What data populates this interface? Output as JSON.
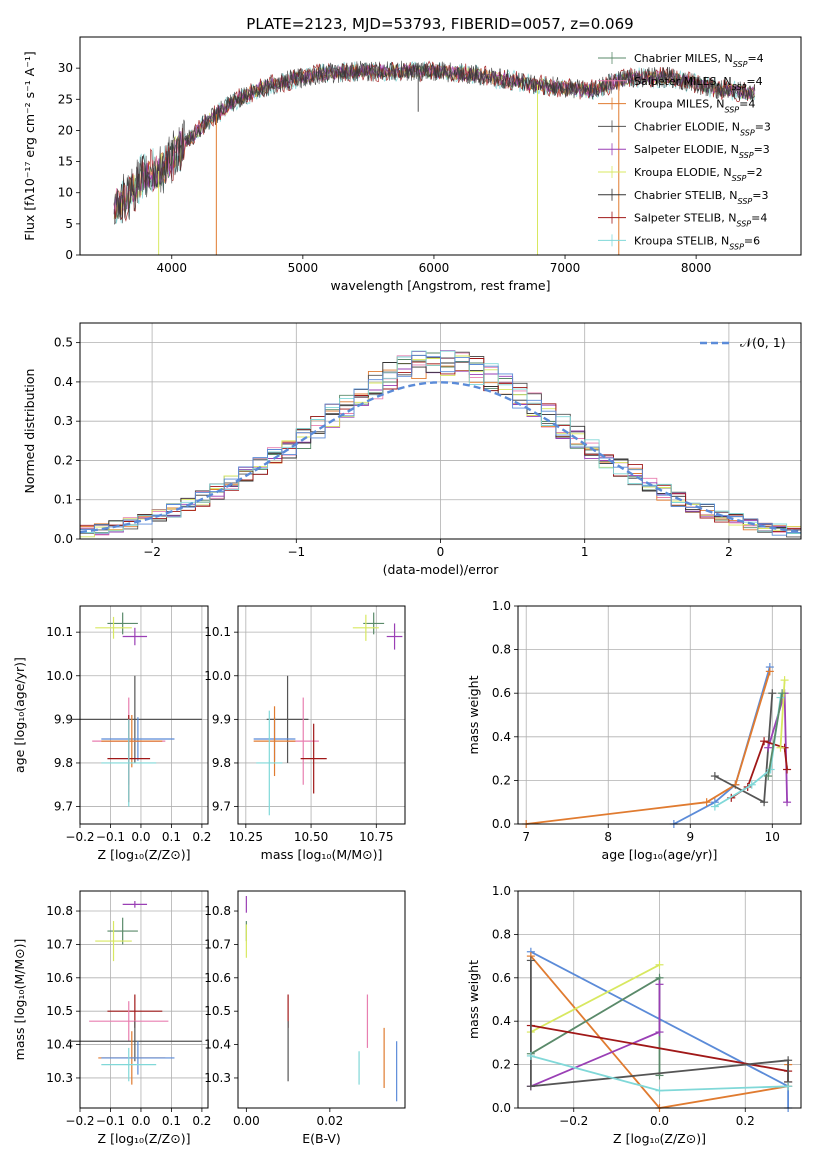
{
  "figure_title": "PLATE=2123, MJD=53793, FIBERID=0057, z=0.069",
  "colors": {
    "chabrier_miles": "#5a8a6a",
    "salpeter_miles": "#e87fb0",
    "kroupa_miles": "#e07b30",
    "chabrier_elodie": "#555555",
    "salpeter_elodie": "#9a3fb5",
    "kroupa_elodie": "#d8e860",
    "chabrier_stelib": "#333333",
    "salpeter_stelib": "#a01818",
    "kroupa_stelib": "#80d8d8",
    "normal_curve": "#5b8bd8",
    "extra_blue": "#5b8bd8"
  },
  "chart_data": [
    {
      "id": "spectrum",
      "type": "line",
      "title": "PLATE=2123, MJD=53793, FIBERID=0057, z=0.069",
      "xlabel": "wavelength [Angstrom, rest frame]",
      "ylabel": "Flux [fλ10⁻¹⁷ erg cm⁻² s⁻¹ A⁻¹]",
      "xlim": [
        3300,
        8800
      ],
      "ylim": [
        0,
        35
      ],
      "xticks": [
        4000,
        5000,
        6000,
        7000,
        8000
      ],
      "yticks": [
        0,
        5,
        10,
        15,
        20,
        25,
        30
      ],
      "grid": false,
      "legend_position": "top-right",
      "legend": [
        {
          "model": "Chabrier MILES",
          "n": "4",
          "color": "#5a8a6a"
        },
        {
          "model": "Salpeter MILES",
          "n": "4",
          "color": "#e87fb0"
        },
        {
          "model": "Kroupa MILES",
          "n": "4",
          "color": "#e07b30"
        },
        {
          "model": "Chabrier ELODIE",
          "n": "3",
          "color": "#555555"
        },
        {
          "model": "Salpeter ELODIE",
          "n": "3",
          "color": "#9a3fb5"
        },
        {
          "model": "Kroupa ELODIE",
          "n": "2",
          "color": "#d8e860"
        },
        {
          "model": "Chabrier STELIB",
          "n": "3",
          "color": "#333333"
        },
        {
          "model": "Salpeter STELIB",
          "n": "4",
          "color": "#a01818"
        },
        {
          "model": "Kroupa STELIB",
          "n": "6",
          "color": "#80d8d8"
        }
      ],
      "continuum": [
        [
          3550,
          8
        ],
        [
          3650,
          9
        ],
        [
          3750,
          12
        ],
        [
          3850,
          13
        ],
        [
          3950,
          14
        ],
        [
          4050,
          17
        ],
        [
          4150,
          19
        ],
        [
          4300,
          22
        ],
        [
          4500,
          25
        ],
        [
          4700,
          27
        ],
        [
          4900,
          28
        ],
        [
          5100,
          29
        ],
        [
          5400,
          29.5
        ],
        [
          5700,
          29.5
        ],
        [
          6000,
          29.5
        ],
        [
          6300,
          29
        ],
        [
          6600,
          28
        ],
        [
          6900,
          27
        ],
        [
          7200,
          26.5
        ],
        [
          7500,
          28.5
        ],
        [
          7800,
          28.5
        ],
        [
          8200,
          26.5
        ],
        [
          8450,
          26
        ]
      ],
      "spikes": [
        {
          "x": 4340,
          "y": 0
        },
        {
          "x": 3900,
          "y": 0
        },
        {
          "x": 5880,
          "y": 23
        },
        {
          "x": 6790,
          "y": 0
        },
        {
          "x": 7410,
          "y": 0
        }
      ]
    },
    {
      "id": "residuals",
      "type": "bar",
      "xlabel": "(data-model)/error",
      "ylabel": "Normed distribution",
      "xlim": [
        -2.5,
        2.5
      ],
      "ylim": [
        0,
        0.55
      ],
      "xticks": [
        -2,
        -1,
        0,
        1,
        2
      ],
      "yticks": [
        0.0,
        0.1,
        0.2,
        0.3,
        0.4,
        0.5
      ],
      "grid": true,
      "legend_position": "top-right",
      "curve_label": "𝒩(0, 1)",
      "bin_width": 0.1
    },
    {
      "id": "age_vs_z",
      "type": "scatter",
      "xlabel": "Z [log₁₀(Z/Z⊙)]",
      "ylabel": "age  [log₁₀(age/yr)]",
      "xlim": [
        -0.2,
        0.22
      ],
      "ylim": [
        9.66,
        10.16
      ],
      "xticks": [
        -0.2,
        -0.1,
        0.0,
        0.1,
        0.2
      ],
      "yticks": [
        9.7,
        9.8,
        9.9,
        10.0,
        10.1
      ],
      "grid": true,
      "points": [
        {
          "x": -0.06,
          "y": 10.12,
          "xerr": 0.05,
          "yerr": 0.025,
          "color": "#5a8a6a"
        },
        {
          "x": -0.09,
          "y": 10.11,
          "xerr": 0.06,
          "yerr": 0.025,
          "color": "#d8e860"
        },
        {
          "x": -0.02,
          "y": 10.09,
          "xerr": 0.04,
          "yerr": 0.02,
          "color": "#9a3fb5"
        },
        {
          "x": -0.02,
          "y": 9.9,
          "xerr": 0.22,
          "yerr": 0.1,
          "color": "#555555"
        },
        {
          "x": -0.04,
          "y": 9.85,
          "xerr": 0.12,
          "yerr": 0.1,
          "color": "#e87fb0"
        },
        {
          "x": -0.01,
          "y": 9.855,
          "xerr": 0.12,
          "yerr": 0.05,
          "color": "#5b8bd8"
        },
        {
          "x": -0.03,
          "y": 9.85,
          "xerr": 0.1,
          "yerr": 0.06,
          "color": "#e07b30"
        },
        {
          "x": -0.04,
          "y": 9.81,
          "xerr": 0.07,
          "yerr": 0.1,
          "color": "#a01818"
        },
        {
          "x": -0.04,
          "y": 9.8,
          "xerr": 0.09,
          "yerr": 0.1,
          "color": "#80d8d8"
        }
      ]
    },
    {
      "id": "age_vs_mass",
      "type": "scatter",
      "xlabel": "mass [log₁₀(M/M⊙)]",
      "ylabel": "",
      "xlim": [
        10.22,
        10.86
      ],
      "ylim": [
        9.66,
        10.16
      ],
      "xticks": [
        10.25,
        10.5,
        10.75
      ],
      "yticks": [
        9.7,
        9.8,
        9.9,
        10.0,
        10.1
      ],
      "grid": true,
      "points": [
        {
          "x": 10.74,
          "y": 10.12,
          "xerr": 0.04,
          "yerr": 0.025,
          "color": "#5a8a6a"
        },
        {
          "x": 10.71,
          "y": 10.11,
          "xerr": 0.05,
          "yerr": 0.03,
          "color": "#d8e860"
        },
        {
          "x": 10.82,
          "y": 10.09,
          "xerr": 0.03,
          "yerr": 0.03,
          "color": "#9a3fb5"
        },
        {
          "x": 10.41,
          "y": 9.9,
          "xerr": 0.08,
          "yerr": 0.1,
          "color": "#555555"
        },
        {
          "x": 10.47,
          "y": 9.85,
          "xerr": 0.06,
          "yerr": 0.1,
          "color": "#e87fb0"
        },
        {
          "x": 10.36,
          "y": 9.855,
          "xerr": 0.08,
          "yerr": 0.05,
          "color": "#5b8bd8"
        },
        {
          "x": 10.36,
          "y": 9.85,
          "xerr": 0.08,
          "yerr": 0.08,
          "color": "#e07b30"
        },
        {
          "x": 10.51,
          "y": 9.81,
          "xerr": 0.05,
          "yerr": 0.08,
          "color": "#a01818"
        },
        {
          "x": 10.34,
          "y": 9.8,
          "xerr": 0.05,
          "yerr": 0.12,
          "color": "#80d8d8"
        }
      ]
    },
    {
      "id": "mass_weight_vs_age",
      "type": "line",
      "xlabel": "age  [log₁₀(age/yr)]",
      "ylabel": "mass weight",
      "xlim": [
        6.9,
        10.35
      ],
      "ylim": [
        0,
        1.0
      ],
      "xticks": [
        7,
        8,
        9,
        10
      ],
      "yticks": [
        0.0,
        0.2,
        0.4,
        0.6,
        0.8,
        1.0
      ],
      "grid": true,
      "series": [
        {
          "color": "#5b8bd8",
          "points": [
            [
              8.8,
              0.0
            ],
            [
              9.3,
              0.1
            ],
            [
              9.55,
              0.18
            ],
            [
              9.97,
              0.72
            ]
          ]
        },
        {
          "color": "#e07b30",
          "points": [
            [
              7.0,
              0.0
            ],
            [
              9.2,
              0.1
            ],
            [
              9.55,
              0.18
            ],
            [
              9.97,
              0.7
            ]
          ]
        },
        {
          "color": "#555555",
          "points": [
            [
              9.3,
              0.22
            ],
            [
              9.9,
              0.1
            ],
            [
              10.0,
              0.6
            ]
          ]
        },
        {
          "color": "#9a3fb5",
          "points": [
            [
              9.95,
              0.35
            ],
            [
              10.15,
              0.6
            ],
            [
              10.18,
              0.1
            ]
          ]
        },
        {
          "color": "#a01818",
          "points": [
            [
              9.5,
              0.12
            ],
            [
              9.7,
              0.17
            ],
            [
              9.9,
              0.38
            ],
            [
              10.15,
              0.35
            ],
            [
              10.18,
              0.25
            ]
          ]
        },
        {
          "color": "#d8e860",
          "points": [
            [
              10.1,
              0.35
            ],
            [
              10.15,
              0.66
            ]
          ]
        },
        {
          "color": "#80d8d8",
          "points": [
            [
              9.3,
              0.08
            ],
            [
              9.75,
              0.18
            ],
            [
              9.98,
              0.25
            ],
            [
              10.1,
              0.58
            ]
          ]
        },
        {
          "color": "#5a8a6a",
          "points": [
            [
              9.95,
              0.22
            ],
            [
              10.12,
              0.6
            ]
          ]
        }
      ]
    },
    {
      "id": "mass_vs_z",
      "type": "scatter",
      "xlabel": "Z [log₁₀(Z/Z⊙)]",
      "ylabel": "mass [log₁₀(M/M⊙)]",
      "xlim": [
        -0.2,
        0.22
      ],
      "ylim": [
        10.21,
        10.86
      ],
      "xticks": [
        -0.2,
        -0.1,
        0.0,
        0.1,
        0.2
      ],
      "yticks": [
        10.3,
        10.4,
        10.5,
        10.6,
        10.7,
        10.8
      ],
      "grid": true,
      "points": [
        {
          "x": -0.02,
          "y": 10.82,
          "xerr": 0.04,
          "yerr": 0.01,
          "color": "#9a3fb5"
        },
        {
          "x": -0.06,
          "y": 10.74,
          "xerr": 0.05,
          "yerr": 0.04,
          "color": "#5a8a6a"
        },
        {
          "x": -0.09,
          "y": 10.71,
          "xerr": 0.06,
          "yerr": 0.06,
          "color": "#d8e860"
        },
        {
          "x": -0.02,
          "y": 10.5,
          "xerr": 0.09,
          "yerr": 0.05,
          "color": "#a01818"
        },
        {
          "x": -0.04,
          "y": 10.47,
          "xerr": 0.13,
          "yerr": 0.06,
          "color": "#e87fb0"
        },
        {
          "x": -0.02,
          "y": 10.41,
          "xerr": 0.22,
          "yerr": 0.06,
          "color": "#555555"
        },
        {
          "x": -0.03,
          "y": 10.36,
          "xerr": 0.11,
          "yerr": 0.08,
          "color": "#e07b30"
        },
        {
          "x": -0.01,
          "y": 10.36,
          "xerr": 0.12,
          "yerr": 0.05,
          "color": "#5b8bd8"
        },
        {
          "x": -0.04,
          "y": 10.34,
          "xerr": 0.09,
          "yerr": 0.05,
          "color": "#80d8d8"
        }
      ]
    },
    {
      "id": "mass_vs_ebv",
      "type": "scatter",
      "xlabel": "E(B-V)",
      "ylabel": "",
      "xlim": [
        -0.002,
        0.038
      ],
      "ylim": [
        10.21,
        10.86
      ],
      "xticks": [
        0.0,
        0.02
      ],
      "yticks": [
        10.3,
        10.4,
        10.5,
        10.6,
        10.7,
        10.8
      ],
      "grid": false,
      "points": [
        {
          "x": 0.0,
          "y": 10.82,
          "xerr": 0.0,
          "yerr": 0.025,
          "color": "#9a3fb5"
        },
        {
          "x": 0.0,
          "y": 10.74,
          "xerr": 0.0,
          "yerr": 0.03,
          "color": "#5a8a6a"
        },
        {
          "x": 0.0,
          "y": 10.71,
          "xerr": 0.0,
          "yerr": 0.05,
          "color": "#d8e860"
        },
        {
          "x": 0.01,
          "y": 10.5,
          "xerr": 0.0,
          "yerr": 0.05,
          "color": "#a01818"
        },
        {
          "x": 0.01,
          "y": 10.38,
          "xerr": 0.0,
          "yerr": 0.09,
          "color": "#555555"
        },
        {
          "x": 0.029,
          "y": 10.47,
          "xerr": 0.0,
          "yerr": 0.08,
          "color": "#e87fb0"
        },
        {
          "x": 0.027,
          "y": 10.33,
          "xerr": 0.0,
          "yerr": 0.05,
          "color": "#80d8d8"
        },
        {
          "x": 0.033,
          "y": 10.36,
          "xerr": 0.0,
          "yerr": 0.09,
          "color": "#e07b30"
        },
        {
          "x": 0.036,
          "y": 10.32,
          "xerr": 0.0,
          "yerr": 0.09,
          "color": "#5b8bd8"
        }
      ]
    },
    {
      "id": "mass_weight_vs_z",
      "type": "line",
      "xlabel": "Z [log₁₀(Z/Z⊙)]",
      "ylabel": "mass weight",
      "xlim": [
        -0.33,
        0.33
      ],
      "ylim": [
        0,
        1.0
      ],
      "xticks": [
        -0.2,
        0.0,
        0.2
      ],
      "yticks": [
        0.0,
        0.2,
        0.4,
        0.6,
        0.8,
        1.0
      ],
      "grid": true,
      "series": [
        {
          "color": "#5b8bd8",
          "points": [
            [
              -0.3,
              0.72
            ],
            [
              0.3,
              0.1
            ],
            [
              0.3,
              0.0
            ]
          ]
        },
        {
          "color": "#e07b30",
          "points": [
            [
              -0.3,
              0.7
            ],
            [
              0.0,
              0.0
            ],
            [
              0.3,
              0.1
            ],
            [
              0.3,
              0.2
            ]
          ]
        },
        {
          "color": "#d8e860",
          "points": [
            [
              -0.3,
              0.35
            ],
            [
              0.0,
              0.66
            ]
          ]
        },
        {
          "color": "#5a8a6a",
          "points": [
            [
              -0.3,
              0.25
            ],
            [
              0.0,
              0.6
            ],
            [
              0.0,
              0.15
            ]
          ]
        },
        {
          "color": "#9a3fb5",
          "points": [
            [
              -0.3,
              0.1
            ],
            [
              0.0,
              0.35
            ],
            [
              0.0,
              0.57
            ]
          ]
        },
        {
          "color": "#a01818",
          "points": [
            [
              -0.3,
              0.38
            ],
            [
              0.3,
              0.17
            ],
            [
              0.3,
              0.12
            ]
          ]
        },
        {
          "color": "#555555",
          "points": [
            [
              -0.3,
              0.68
            ],
            [
              -0.3,
              0.1
            ],
            [
              0.3,
              0.22
            ],
            [
              0.3,
              0.12
            ]
          ]
        },
        {
          "color": "#80d8d8",
          "points": [
            [
              -0.3,
              0.24
            ],
            [
              0.0,
              0.08
            ],
            [
              0.3,
              0.1
            ]
          ]
        }
      ]
    }
  ]
}
